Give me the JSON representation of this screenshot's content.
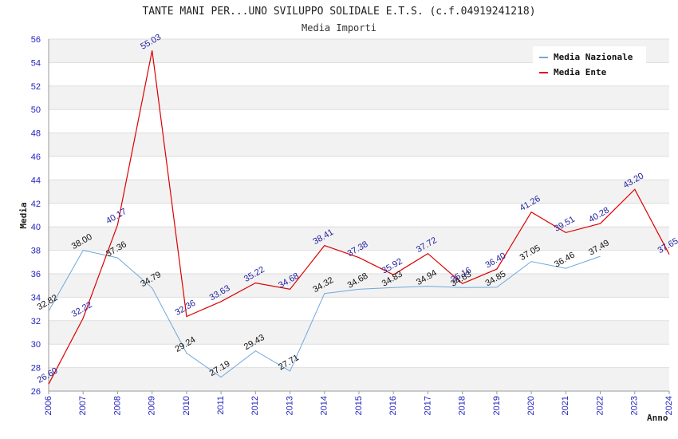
{
  "chart_data": {
    "type": "line",
    "title": "TANTE MANI PER...UNO SVILUPPO SOLIDALE E.T.S. (c.f.04919241218)",
    "subtitle": "Media Importi",
    "xlabel": "Anno",
    "ylabel": "Media",
    "ylim": [
      26,
      56
    ],
    "yticks": [
      "26",
      "28",
      "30",
      "32",
      "34",
      "36",
      "38",
      "40",
      "42",
      "44",
      "46",
      "48",
      "50",
      "52",
      "54",
      "56"
    ],
    "x": [
      "2006",
      "2007",
      "2008",
      "2009",
      "2010",
      "2011",
      "2012",
      "2013",
      "2014",
      "2015",
      "2016",
      "2017",
      "2018",
      "2019",
      "2020",
      "2021",
      "2022",
      "2023",
      "2024"
    ],
    "grid": "horizontal, alternating bands",
    "legend_position": "top-right",
    "series": [
      {
        "name": "Media Nazionale",
        "color": "#6fa8dc",
        "values": [
          32.82,
          38.0,
          37.36,
          34.79,
          29.24,
          27.19,
          29.43,
          27.71,
          34.32,
          34.68,
          34.83,
          34.94,
          34.83,
          34.85,
          37.05,
          36.46,
          37.49,
          null,
          null
        ],
        "labels": [
          "32.82",
          "38.00",
          "37.36",
          "34.79",
          "29.24",
          "27.19",
          "29.43",
          "27.71",
          "34.32",
          "34.68",
          "34.83",
          "34.94",
          "34.83",
          "34.85",
          "37.05",
          "36.46",
          "37.49",
          "",
          ""
        ]
      },
      {
        "name": "Media Ente",
        "color": "#dd0000",
        "values": [
          26.6,
          32.22,
          40.17,
          55.03,
          32.36,
          33.63,
          35.22,
          34.68,
          38.41,
          37.38,
          35.92,
          37.72,
          35.16,
          36.4,
          41.26,
          39.51,
          40.28,
          43.2,
          37.65
        ],
        "labels": [
          "26.60",
          "32.22",
          "40.17",
          "55.03",
          "32.36",
          "33.63",
          "35.22",
          "34.68",
          "38.41",
          "37.38",
          "35.92",
          "37.72",
          "35.16",
          "36.40",
          "41.26",
          "39.51",
          "40.28",
          "43.20",
          "37.65"
        ]
      }
    ]
  }
}
